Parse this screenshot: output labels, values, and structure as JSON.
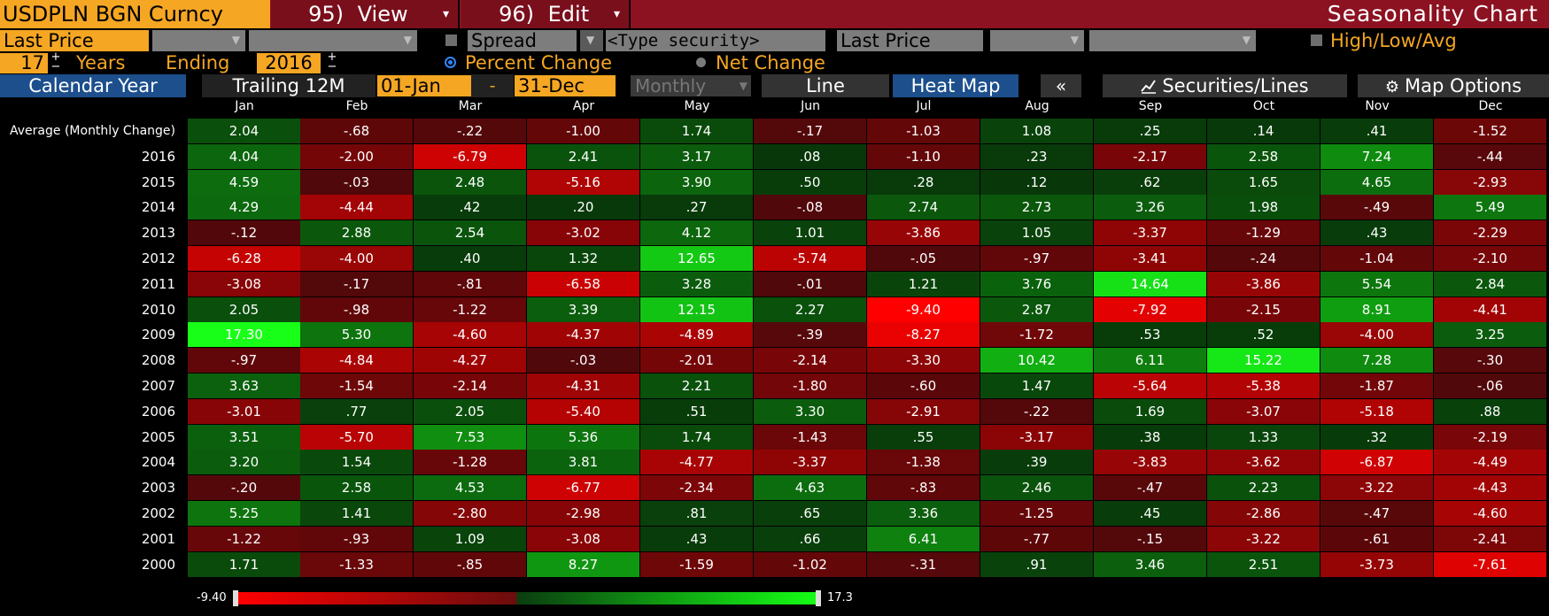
{
  "header": {
    "security": "USDPLN BGN Curncy",
    "view_num": "95)",
    "view_label": "View",
    "edit_num": "96)",
    "edit_label": "Edit",
    "title": "Seasonality Chart"
  },
  "fields": {
    "price_field": "Last Price",
    "spread_label": "Spread",
    "security_placeholder": "<Type security>",
    "price_field_2": "Last Price",
    "high_low_avg": "High/Low/Avg",
    "years_value": "17",
    "years_label": "Years",
    "ending_label": "Ending",
    "ending_value": "2016",
    "percent_change": "Percent Change",
    "net_change": "Net Change"
  },
  "tabs": {
    "calendar_year": "Calendar Year",
    "trailing_12m": "Trailing 12M",
    "start_date": "01-Jan",
    "dash": "-",
    "end_date": "31-Dec",
    "periodicity": "Monthly",
    "line": "Line",
    "heat_map": "Heat Map",
    "collapse": "«",
    "securities_lines": "Securities/Lines",
    "map_options": "Map Options"
  },
  "icons": {
    "securities": "line-chart-icon",
    "map_options": "gear-icon"
  },
  "colors": {
    "title_bar": "#8c1221",
    "accent_orange": "#f5a623",
    "selected_tab": "#1c4f8c",
    "negative_max": "#ff0000",
    "positive_max": "#15ff15"
  },
  "heatmap": {
    "months": [
      "Jan",
      "Feb",
      "Mar",
      "Apr",
      "May",
      "Jun",
      "Jul",
      "Aug",
      "Sep",
      "Oct",
      "Nov",
      "Dec"
    ],
    "rows": [
      {
        "label": "Average (Monthly Change)",
        "values": [
          "2.04",
          "-.68",
          "-.22",
          "-1.00",
          "1.74",
          "-.17",
          "-1.03",
          "1.08",
          ".25",
          ".14",
          ".41",
          "-1.52"
        ]
      },
      {
        "label": "2016",
        "values": [
          "4.04",
          "-2.00",
          "-6.79",
          "2.41",
          "3.17",
          ".08",
          "-1.10",
          ".23",
          "-2.17",
          "2.58",
          "7.24",
          "-.44"
        ]
      },
      {
        "label": "2015",
        "values": [
          "4.59",
          "-.03",
          "2.48",
          "-5.16",
          "3.90",
          ".50",
          ".28",
          ".12",
          ".62",
          "1.65",
          "4.65",
          "-2.93"
        ]
      },
      {
        "label": "2014",
        "values": [
          "4.29",
          "-4.44",
          ".42",
          ".20",
          ".27",
          "-.08",
          "2.74",
          "2.73",
          "3.26",
          "1.98",
          "-.49",
          "5.49"
        ]
      },
      {
        "label": "2013",
        "values": [
          "-.12",
          "2.88",
          "2.54",
          "-3.02",
          "4.12",
          "1.01",
          "-3.86",
          "1.05",
          "-3.37",
          "-1.29",
          ".43",
          "-2.29"
        ]
      },
      {
        "label": "2012",
        "values": [
          "-6.28",
          "-4.00",
          ".40",
          "1.32",
          "12.65",
          "-5.74",
          "-.05",
          "-.97",
          "-3.41",
          "-.24",
          "-1.04",
          "-2.10"
        ]
      },
      {
        "label": "2011",
        "values": [
          "-3.08",
          "-.17",
          "-.81",
          "-6.58",
          "3.28",
          "-.01",
          "1.21",
          "3.76",
          "14.64",
          "-3.86",
          "5.54",
          "2.84"
        ]
      },
      {
        "label": "2010",
        "values": [
          "2.05",
          "-.98",
          "-1.22",
          "3.39",
          "12.15",
          "2.27",
          "-9.40",
          "2.87",
          "-7.92",
          "-2.15",
          "8.91",
          "-4.41"
        ]
      },
      {
        "label": "2009",
        "values": [
          "17.30",
          "5.30",
          "-4.60",
          "-4.37",
          "-4.89",
          "-.39",
          "-8.27",
          "-1.72",
          ".53",
          ".52",
          "-4.00",
          "3.25"
        ]
      },
      {
        "label": "2008",
        "values": [
          "-.97",
          "-4.84",
          "-4.27",
          "-.03",
          "-2.01",
          "-2.14",
          "-3.30",
          "10.42",
          "6.11",
          "15.22",
          "7.28",
          "-.30"
        ]
      },
      {
        "label": "2007",
        "values": [
          "3.63",
          "-1.54",
          "-2.14",
          "-4.31",
          "2.21",
          "-1.80",
          "-.60",
          "1.47",
          "-5.64",
          "-5.38",
          "-1.87",
          "-.06"
        ]
      },
      {
        "label": "2006",
        "values": [
          "-3.01",
          ".77",
          "2.05",
          "-5.40",
          ".51",
          "3.30",
          "-2.91",
          "-.22",
          "1.69",
          "-3.07",
          "-5.18",
          ".88"
        ]
      },
      {
        "label": "2005",
        "values": [
          "3.51",
          "-5.70",
          "7.53",
          "5.36",
          "1.74",
          "-1.43",
          ".55",
          "-3.17",
          ".38",
          "1.33",
          ".32",
          "-2.19"
        ]
      },
      {
        "label": "2004",
        "values": [
          "3.20",
          "1.54",
          "-1.28",
          "3.81",
          "-4.77",
          "-3.37",
          "-1.38",
          ".39",
          "-3.83",
          "-3.62",
          "-6.87",
          "-4.49"
        ]
      },
      {
        "label": "2003",
        "values": [
          "-.20",
          "2.58",
          "4.53",
          "-6.77",
          "-2.34",
          "4.63",
          "-.83",
          "2.46",
          "-.47",
          "2.23",
          "-3.22",
          "-4.43"
        ]
      },
      {
        "label": "2002",
        "values": [
          "5.25",
          "1.41",
          "-2.80",
          "-2.98",
          ".81",
          ".65",
          "3.36",
          "-1.25",
          ".45",
          "-2.86",
          "-.47",
          "-4.60"
        ]
      },
      {
        "label": "2001",
        "values": [
          "-1.22",
          "-.93",
          "1.09",
          "-3.08",
          ".43",
          ".66",
          "6.41",
          "-.77",
          "-.15",
          "-3.22",
          "-.61",
          "-2.41"
        ]
      },
      {
        "label": "2000",
        "values": [
          "1.71",
          "-1.33",
          "-.85",
          "8.27",
          "-1.59",
          "-1.02",
          "-.31",
          ".91",
          "3.46",
          "2.51",
          "-3.73",
          "-7.61"
        ]
      }
    ]
  },
  "legend": {
    "min": "-9.40",
    "max": "17.3",
    "min_value": -9.4,
    "max_value": 17.3
  }
}
